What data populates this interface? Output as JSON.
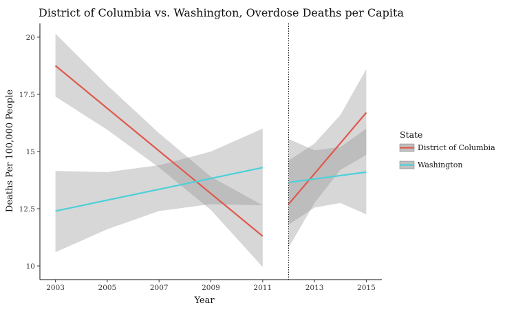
{
  "chart_data": {
    "type": "line",
    "title": "District of Columbia vs. Washington, Overdose Deaths per Capita",
    "xlabel": "Year",
    "ylabel": "Deaths Per 100,000 People",
    "xlim": [
      2002.4,
      2015.6
    ],
    "ylim": [
      9.4,
      20.6
    ],
    "x_ticks": [
      2003,
      2005,
      2007,
      2009,
      2011,
      2013,
      2015
    ],
    "y_ticks": [
      10,
      12.5,
      15,
      17.5,
      20
    ],
    "y_tick_labels": [
      "10",
      "12.5",
      "15",
      "17.5",
      "20"
    ],
    "cutoff_x": 2012,
    "grid": false,
    "legend": {
      "title": "State",
      "position": "right"
    },
    "series": [
      {
        "name": "District of Columbia",
        "color": "#e0584d",
        "segments": [
          {
            "x": [
              2003,
              2011
            ],
            "y": [
              18.75,
              11.3
            ],
            "ci_x": [
              2003,
              2005,
              2007,
              2009,
              2011
            ],
            "ci_upper": [
              20.15,
              17.9,
              15.8,
              13.9,
              12.65
            ],
            "ci_lower": [
              17.4,
              15.95,
              14.3,
              12.45,
              9.95
            ]
          },
          {
            "x": [
              2012,
              2015
            ],
            "y": [
              12.7,
              16.7
            ],
            "ci_x": [
              2012,
              2013,
              2014,
              2015
            ],
            "ci_upper": [
              14.6,
              15.35,
              16.6,
              18.6
            ],
            "ci_lower": [
              10.8,
              12.75,
              14.2,
              14.85
            ]
          }
        ]
      },
      {
        "name": "Washington",
        "color": "#4dd0d8",
        "segments": [
          {
            "x": [
              2003,
              2011
            ],
            "y": [
              12.4,
              14.3
            ],
            "ci_x": [
              2003,
              2005,
              2007,
              2009,
              2011
            ],
            "ci_upper": [
              14.15,
              14.1,
              14.4,
              15.0,
              16.0
            ],
            "ci_lower": [
              10.6,
              11.6,
              12.4,
              12.7,
              12.65
            ]
          },
          {
            "x": [
              2012,
              2015
            ],
            "y": [
              13.65,
              14.1
            ],
            "ci_x": [
              2012,
              2013,
              2014,
              2015
            ],
            "ci_upper": [
              15.55,
              15.05,
              15.2,
              16.0
            ],
            "ci_lower": [
              11.8,
              12.55,
              12.75,
              12.25
            ]
          }
        ]
      }
    ]
  }
}
